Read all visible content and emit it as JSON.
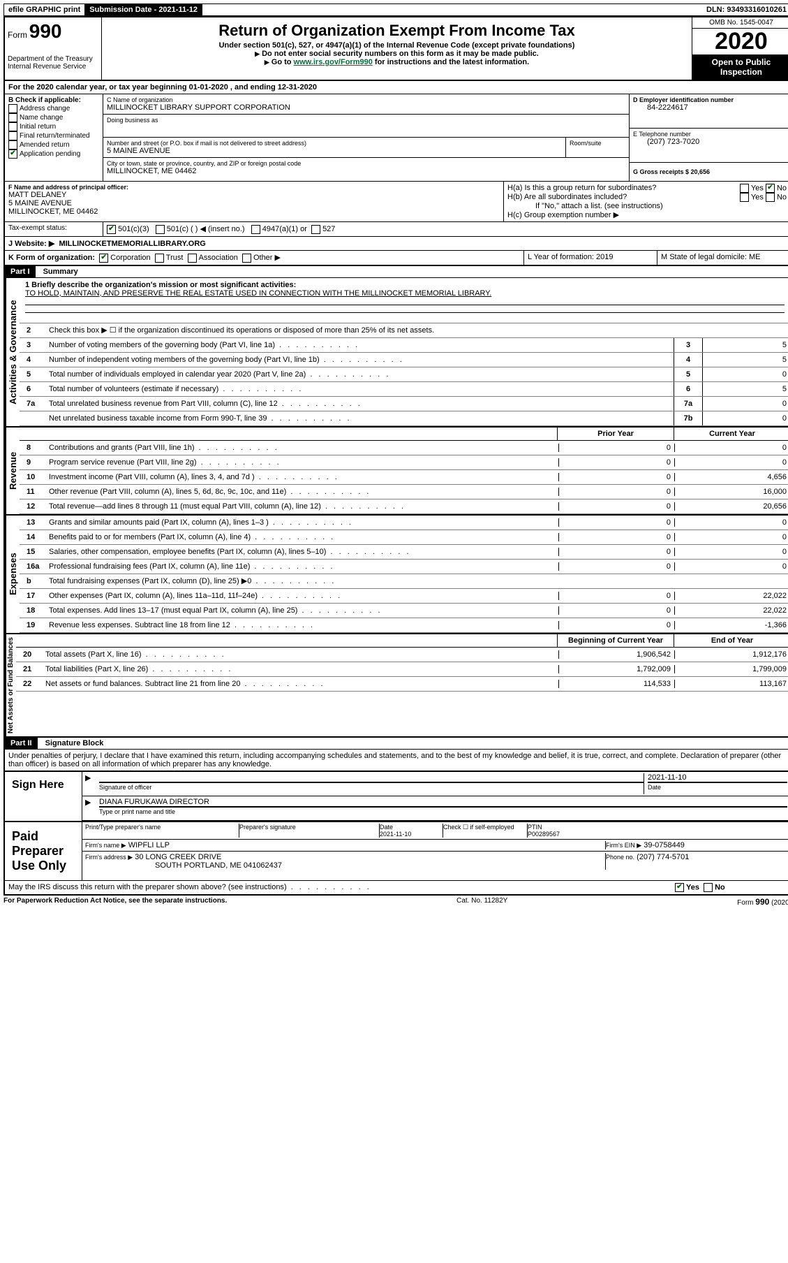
{
  "topbar": {
    "efile": "efile GRAPHIC print",
    "submission_label": "Submission Date - 2021-11-12",
    "dln": "DLN: 93493316010261"
  },
  "header": {
    "form_prefix": "Form",
    "form_number": "990",
    "dept": "Department of the Treasury",
    "irs": "Internal Revenue Service",
    "title": "Return of Organization Exempt From Income Tax",
    "subtitle": "Under section 501(c), 527, or 4947(a)(1) of the Internal Revenue Code (except private foundations)",
    "note1": "Do not enter social security numbers on this form as it may be made public.",
    "link_text": "www.irs.gov/Form990",
    "note2_prefix": "Go to ",
    "note2_suffix": " for instructions and the latest information.",
    "omb": "OMB No. 1545-0047",
    "year": "2020",
    "open": "Open to Public Inspection"
  },
  "section_a": {
    "line_a": "For the 2020 calendar year, or tax year beginning 01-01-2020    , and ending 12-31-2020",
    "b_label": "B Check if applicable:",
    "b_opts": [
      "Address change",
      "Name change",
      "Initial return",
      "Final return/terminated",
      "Amended return",
      "Application pending"
    ],
    "c_label": "C Name of organization",
    "c_name": "MILLINOCKET LIBRARY SUPPORT CORPORATION",
    "dba_label": "Doing business as",
    "addr_label": "Number and street (or P.O. box if mail is not delivered to street address)",
    "addr": "5 MAINE AVENUE",
    "room_label": "Room/suite",
    "city_label": "City or town, state or province, country, and ZIP or foreign postal code",
    "city": "MILLINOCKET, ME  04462",
    "d_label": "D Employer identification number",
    "d_ein": "84-2224617",
    "e_label": "E Telephone number",
    "e_phone": "(207) 723-7020",
    "g_label": "G Gross receipts $ 20,656",
    "f_label": "F  Name and address of principal officer:",
    "f_name": "MATT DELANEY",
    "f_addr1": "5 MAINE AVENUE",
    "f_addr2": "MILLINOCKET, ME  04462",
    "h_a": "H(a)  Is this a group return for subordinates?",
    "h_b": "H(b)  Are all subordinates included?",
    "h_note": "If \"No,\" attach a list. (see instructions)",
    "h_c": "H(c)  Group exemption number ▶",
    "tax_exempt": "Tax-exempt status:",
    "te_501c3": "501(c)(3)",
    "te_501c": "501(c) (  ) ◀ (insert no.)",
    "te_4947": "4947(a)(1) or",
    "te_527": "527",
    "j_label": "J    Website: ▶",
    "j_site": "MILLINOCKETMEMORIALLIBRARY.ORG",
    "k_label": "K Form of organization:",
    "k_opts": [
      "Corporation",
      "Trust",
      "Association",
      "Other ▶"
    ],
    "l_label": "L Year of formation: 2019",
    "m_label": "M State of legal domicile: ME",
    "yes": "Yes",
    "no": "No"
  },
  "part1": {
    "label": "Part I",
    "title": "Summary",
    "gov_label": "Activities & Governance",
    "rev_label": "Revenue",
    "exp_label": "Expenses",
    "net_label": "Net Assets or Fund Balances",
    "line1_label": "1  Briefly describe the organization's mission or most significant activities:",
    "line1_text": "TO HOLD, MAINTAIN, AND PRESERVE THE REAL ESTATE USED IN CONNECTION WITH THE MILLINOCKET MEMORIAL LIBRARY.",
    "line2": "Check this box ▶ ☐  if the organization discontinued its operations or disposed of more than 25% of its net assets.",
    "rows_gov": [
      {
        "n": "3",
        "d": "Number of voting members of the governing body (Part VI, line 1a)",
        "box": "3",
        "v": "5"
      },
      {
        "n": "4",
        "d": "Number of independent voting members of the governing body (Part VI, line 1b)",
        "box": "4",
        "v": "5"
      },
      {
        "n": "5",
        "d": "Total number of individuals employed in calendar year 2020 (Part V, line 2a)",
        "box": "5",
        "v": "0"
      },
      {
        "n": "6",
        "d": "Total number of volunteers (estimate if necessary)",
        "box": "6",
        "v": "5"
      },
      {
        "n": "7a",
        "d": "Total unrelated business revenue from Part VIII, column (C), line 12",
        "box": "7a",
        "v": "0"
      },
      {
        "n": "",
        "d": "Net unrelated business taxable income from Form 990-T, line 39",
        "box": "7b",
        "v": "0"
      }
    ],
    "prior_label": "Prior Year",
    "current_label": "Current Year",
    "rows_rev": [
      {
        "n": "8",
        "d": "Contributions and grants (Part VIII, line 1h)",
        "p": "0",
        "c": "0"
      },
      {
        "n": "9",
        "d": "Program service revenue (Part VIII, line 2g)",
        "p": "0",
        "c": "0"
      },
      {
        "n": "10",
        "d": "Investment income (Part VIII, column (A), lines 3, 4, and 7d )",
        "p": "0",
        "c": "4,656"
      },
      {
        "n": "11",
        "d": "Other revenue (Part VIII, column (A), lines 5, 6d, 8c, 9c, 10c, and 11e)",
        "p": "0",
        "c": "16,000"
      },
      {
        "n": "12",
        "d": "Total revenue—add lines 8 through 11 (must equal Part VIII, column (A), line 12)",
        "p": "0",
        "c": "20,656"
      }
    ],
    "rows_exp": [
      {
        "n": "13",
        "d": "Grants and similar amounts paid (Part IX, column (A), lines 1–3 )",
        "p": "0",
        "c": "0"
      },
      {
        "n": "14",
        "d": "Benefits paid to or for members (Part IX, column (A), line 4)",
        "p": "0",
        "c": "0"
      },
      {
        "n": "15",
        "d": "Salaries, other compensation, employee benefits (Part IX, column (A), lines 5–10)",
        "p": "0",
        "c": "0"
      },
      {
        "n": "16a",
        "d": "Professional fundraising fees (Part IX, column (A), line 11e)",
        "p": "0",
        "c": "0"
      },
      {
        "n": "b",
        "d": "Total fundraising expenses (Part IX, column (D), line 25) ▶0",
        "p": "grey",
        "c": "grey"
      },
      {
        "n": "17",
        "d": "Other expenses (Part IX, column (A), lines 11a–11d, 11f–24e)",
        "p": "0",
        "c": "22,022"
      },
      {
        "n": "18",
        "d": "Total expenses. Add lines 13–17 (must equal Part IX, column (A), line 25)",
        "p": "0",
        "c": "22,022"
      },
      {
        "n": "19",
        "d": "Revenue less expenses. Subtract line 18 from line 12",
        "p": "0",
        "c": "-1,366"
      }
    ],
    "begin_label": "Beginning of Current Year",
    "end_label": "End of Year",
    "rows_net": [
      {
        "n": "20",
        "d": "Total assets (Part X, line 16)",
        "p": "1,906,542",
        "c": "1,912,176"
      },
      {
        "n": "21",
        "d": "Total liabilities (Part X, line 26)",
        "p": "1,792,009",
        "c": "1,799,009"
      },
      {
        "n": "22",
        "d": "Net assets or fund balances. Subtract line 21 from line 20",
        "p": "114,533",
        "c": "113,167"
      }
    ]
  },
  "part2": {
    "label": "Part II",
    "title": "Signature Block",
    "declaration": "Under penalties of perjury, I declare that I have examined this return, including accompanying schedules and statements, and to the best of my knowledge and belief, it is true, correct, and complete. Declaration of preparer (other than officer) is based on all information of which preparer has any knowledge.",
    "sign_here": "Sign Here",
    "sig_officer": "Signature of officer",
    "sig_date_label": "Date",
    "sig_date": "2021-11-10",
    "officer_name": "DIANA FURUKAWA  DIRECTOR",
    "type_print": "Type or print name and title",
    "paid_label": "Paid Preparer Use Only",
    "prep_name_label": "Print/Type preparer's name",
    "prep_sig_label": "Preparer's signature",
    "prep_date_label": "Date",
    "prep_date": "2021-11-10",
    "check_self": "Check ☐ if self-employed",
    "ptin_label": "PTIN",
    "ptin": "P00289567",
    "firm_name_label": "Firm's name    ▶",
    "firm_name": "WIPFLI LLP",
    "firm_ein_label": "Firm's EIN ▶",
    "firm_ein": "39-0758449",
    "firm_addr_label": "Firm's address ▶",
    "firm_addr1": "30 LONG CREEK DRIVE",
    "firm_addr2": "SOUTH PORTLAND, ME  041062437",
    "firm_phone_label": "Phone no.",
    "firm_phone": "(207) 774-5701",
    "discuss": "May the IRS discuss this return with the preparer shown above? (see instructions)"
  },
  "footer": {
    "left": "For Paperwork Reduction Act Notice, see the separate instructions.",
    "center": "Cat. No. 11282Y",
    "right": "Form 990 (2020)"
  }
}
